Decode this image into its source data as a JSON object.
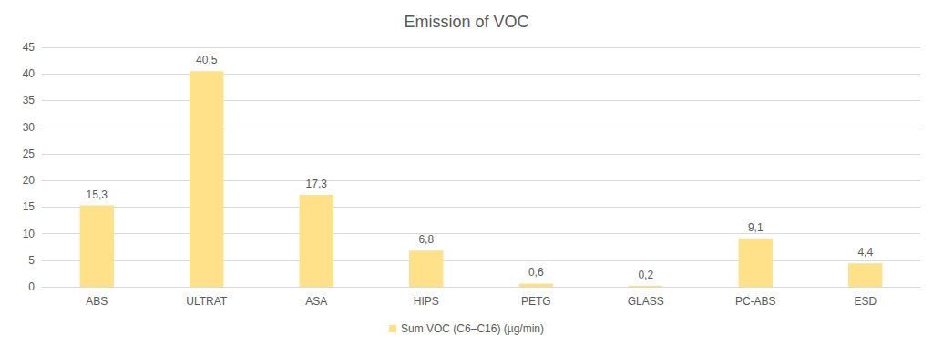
{
  "chart_data": {
    "type": "bar",
    "title": "Emission of VOC",
    "categories": [
      "ABS",
      "ULTRAT",
      "ASA",
      "HIPS",
      "PETG",
      "GLASS",
      "PC-ABS",
      "ESD"
    ],
    "series": [
      {
        "name": "Sum VOC (C6–C16) (µg/min)",
        "color": "#ffe18a",
        "values": [
          15.3,
          40.5,
          17.3,
          6.8,
          0.6,
          0.2,
          9.1,
          4.4
        ],
        "value_labels": [
          "15,3",
          "40,5",
          "17,3",
          "6,8",
          "0,6",
          "0,2",
          "9,1",
          "4,4"
        ]
      }
    ],
    "ylim": [
      0,
      45
    ],
    "yticks": [
      0,
      5,
      10,
      15,
      20,
      25,
      30,
      35,
      40,
      45
    ],
    "grid": true,
    "legend": "bottom",
    "data_labels": true
  }
}
